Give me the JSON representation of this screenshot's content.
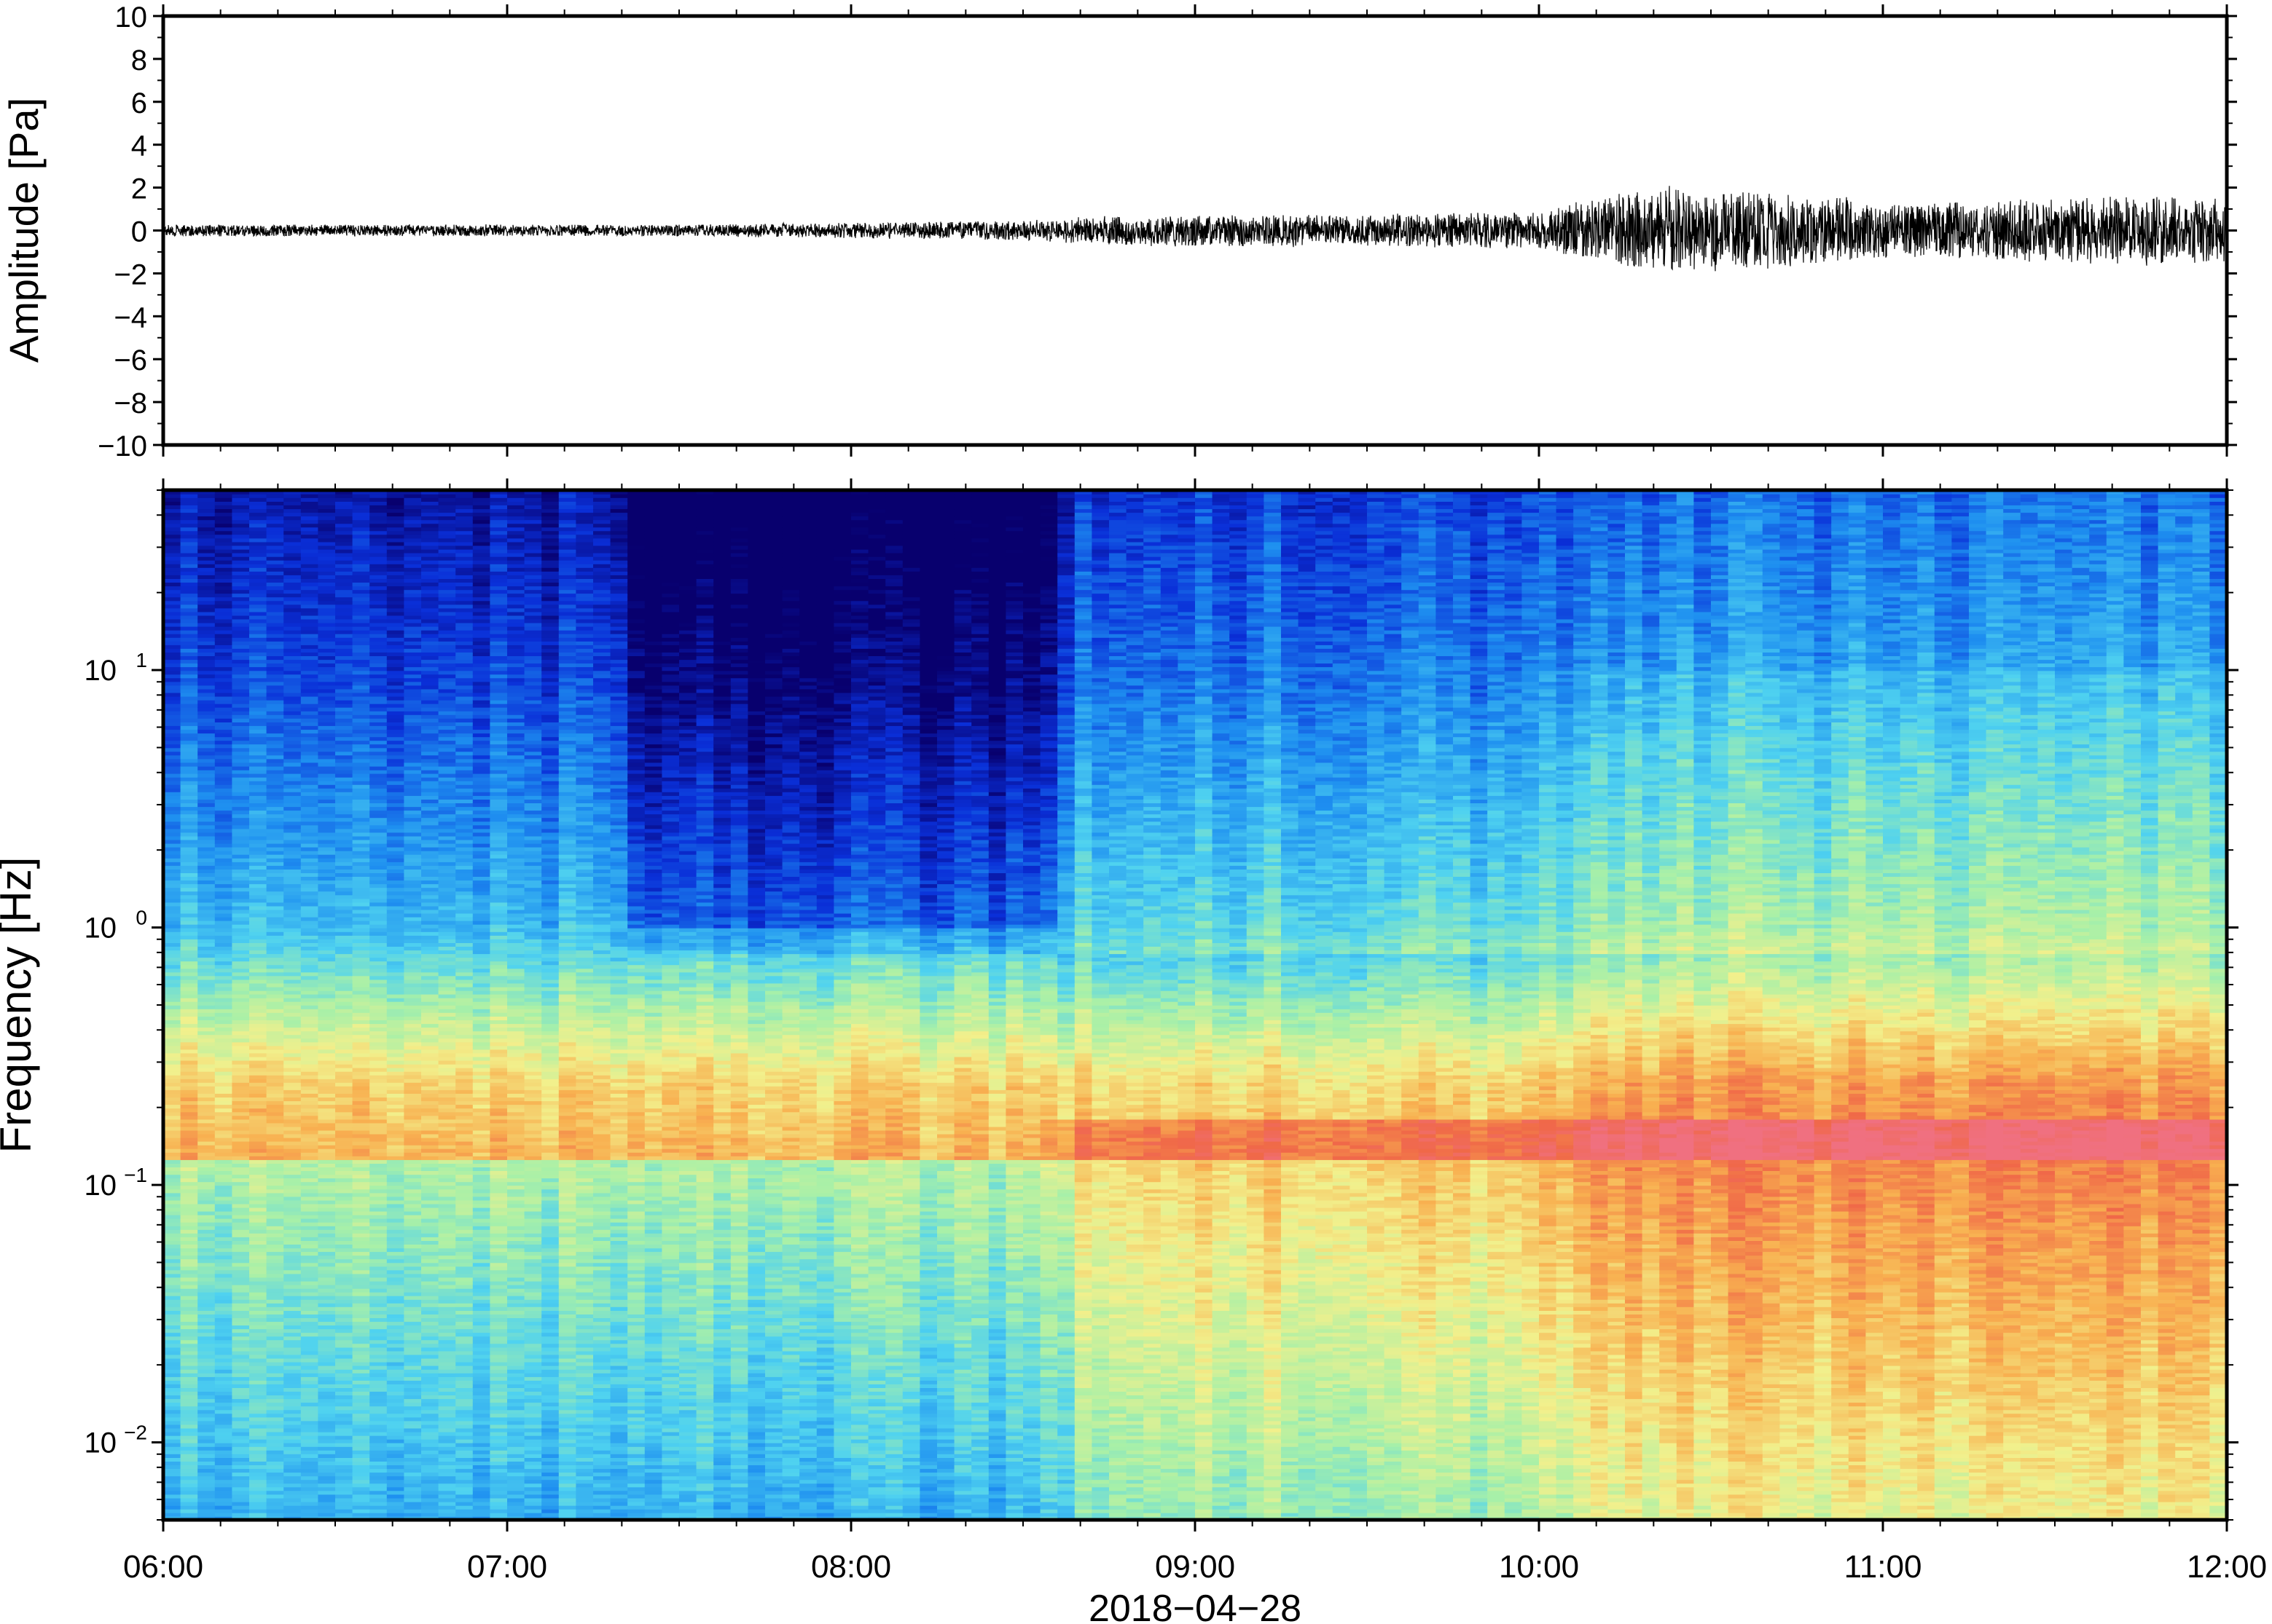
{
  "chart_data": [
    {
      "type": "line",
      "ylabel": "Amplitude [Pa]",
      "ylim": [
        -10,
        10
      ],
      "yticks": [
        -10,
        -8,
        -6,
        -4,
        -2,
        0,
        2,
        4,
        6,
        8,
        10
      ],
      "ytick_labels": [
        "−10",
        "−8",
        "−6",
        "−4",
        "−2",
        "0",
        "2",
        "4",
        "6",
        "8",
        "10"
      ],
      "xlim": [
        "06:00",
        "12:00"
      ],
      "grid": false,
      "envelope": {
        "description_units": "Pa",
        "x": [
          "06:00",
          "06:30",
          "07:00",
          "07:30",
          "08:00",
          "08:30",
          "08:40",
          "09:00",
          "09:30",
          "10:00",
          "10:10",
          "10:20",
          "10:30",
          "10:40",
          "11:00",
          "11:20",
          "11:40",
          "12:00"
        ],
        "max_abs": [
          0.3,
          0.3,
          0.3,
          0.3,
          0.4,
          0.5,
          0.7,
          0.8,
          0.8,
          1.0,
          1.6,
          2.2,
          2.0,
          2.0,
          1.4,
          1.5,
          1.8,
          1.6
        ]
      },
      "series": [
        {
          "values_note": "dense high-frequency pressure trace",
          "color": "#000000"
        }
      ]
    },
    {
      "type": "heatmap",
      "ylabel": "Frequency [Hz]",
      "yscale": "log",
      "ylim": [
        0.005,
        50
      ],
      "yticks": [
        0.01,
        0.1,
        1,
        10
      ],
      "ytick_labels": [
        {
          "base": "10",
          "exp": "−2"
        },
        {
          "base": "10",
          "exp": "−1"
        },
        {
          "base": "10",
          "exp": "0"
        },
        {
          "base": "10",
          "exp": "1"
        }
      ],
      "xlabel": "2018−04−28",
      "xticks": [
        "06:00",
        "07:00",
        "08:00",
        "09:00",
        "10:00",
        "11:00",
        "12:00"
      ],
      "colormap": [
        "#08006e",
        "#0a2fd8",
        "#1e8ff0",
        "#4fd2f0",
        "#a8f0a8",
        "#f2f08c",
        "#f8b050",
        "#f06848",
        "#f07080"
      ],
      "color_scale_note": "relative power, low (dark blue) to high (red/pink)"
    }
  ]
}
